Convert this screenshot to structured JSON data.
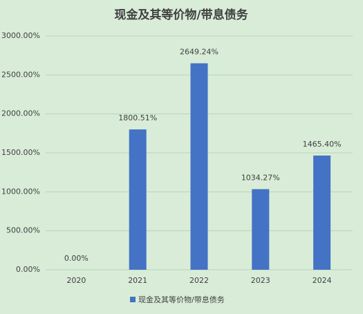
{
  "chart_data": {
    "type": "bar",
    "title": "现金及其等价物/带息债务",
    "categories": [
      "2020",
      "2021",
      "2022",
      "2023",
      "2024"
    ],
    "series": [
      {
        "name": "现金及其等价物/带息债务",
        "color": "#4472c4",
        "values": [
          0,
          1800.51,
          2649.24,
          1034.27,
          1465.4
        ],
        "value_labels": [
          "0.00%",
          "1800.51%",
          "2649.24%",
          "1034.27%",
          "1465.40%"
        ]
      }
    ],
    "ylim": [
      0,
      3000
    ],
    "yticks": [
      {
        "value": 0,
        "label": "0.00%"
      },
      {
        "value": 500,
        "label": "500.00%"
      },
      {
        "value": 1000,
        "label": "1000.00%"
      },
      {
        "value": 1500,
        "label": "1500.00%"
      },
      {
        "value": 2000,
        "label": "2000.00%"
      },
      {
        "value": 2500,
        "label": "2500.00%"
      },
      {
        "value": 3000,
        "label": "3000.00%"
      }
    ],
    "grid": true,
    "legend": "bottom"
  }
}
